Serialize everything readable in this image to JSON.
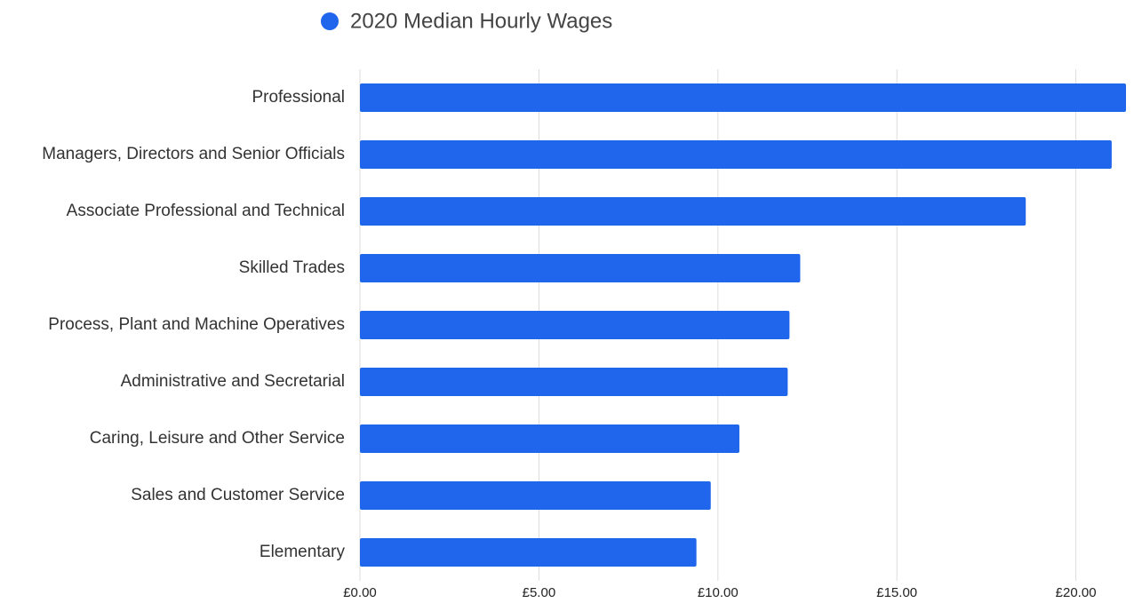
{
  "chart_data": {
    "type": "bar",
    "orientation": "horizontal",
    "series": [
      {
        "name": "2020 Median Hourly Wages",
        "color": "#1f66ec",
        "values": [
          21.4,
          21.0,
          18.6,
          12.3,
          12.0,
          11.95,
          10.6,
          9.8,
          9.4
        ]
      }
    ],
    "categories": [
      "Professional",
      "Managers, Directors and Senior Officials",
      "Associate Professional and Technical",
      "Skilled Trades",
      "Process, Plant and Machine Operatives",
      "Administrative and Secretarial",
      "Caring, Leisure and Other Service",
      "Sales and Customer Service",
      "Elementary"
    ],
    "xlim": [
      0,
      21.4
    ],
    "xticks": [
      {
        "value": 0,
        "label": "£0.00"
      },
      {
        "value": 5,
        "label": "£5.00"
      },
      {
        "value": 10,
        "label": "£10.00"
      },
      {
        "value": 15,
        "label": "£15.00"
      },
      {
        "value": 20,
        "label": "£20.00"
      }
    ],
    "grid": true,
    "legend": "top"
  }
}
